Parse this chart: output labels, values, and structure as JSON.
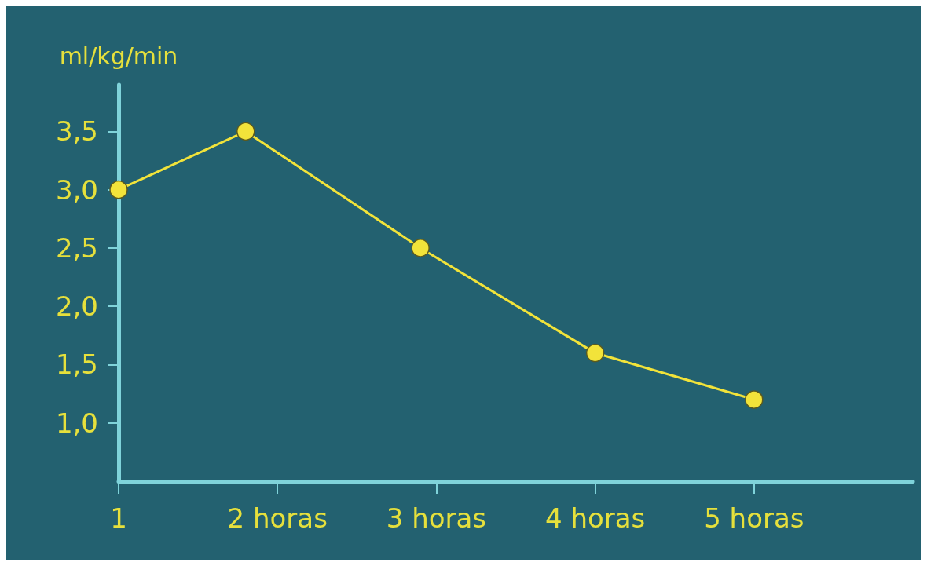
{
  "chart_data": {
    "type": "line",
    "ylabel": "ml/kg/min",
    "x": [
      1,
      1.8,
      2.9,
      4,
      5
    ],
    "series": [
      {
        "color": "#f2e33a",
        "values": [
          3.0,
          3.5,
          2.5,
          1.6,
          1.2
        ]
      }
    ],
    "xlim": [
      1,
      6
    ],
    "xticks": [
      {
        "value": 1,
        "label": "1"
      },
      {
        "value": 2,
        "label": "2 horas"
      },
      {
        "value": 3,
        "label": "3 horas"
      },
      {
        "value": 4,
        "label": "4 horas"
      },
      {
        "value": 5,
        "label": "5 horas"
      }
    ],
    "ylim": [
      0.5,
      3.9
    ],
    "yticks": [
      {
        "value": 1,
        "label": "1,0"
      },
      {
        "value": 1.5,
        "label": "1,5"
      },
      {
        "value": 2,
        "label": "2,0"
      },
      {
        "value": 2.5,
        "label": "2,5"
      },
      {
        "value": 3,
        "label": "3,0"
      },
      {
        "value": 3.5,
        "label": "3,5"
      }
    ],
    "grid": false,
    "marker": "circle",
    "line_style": "solid"
  }
}
